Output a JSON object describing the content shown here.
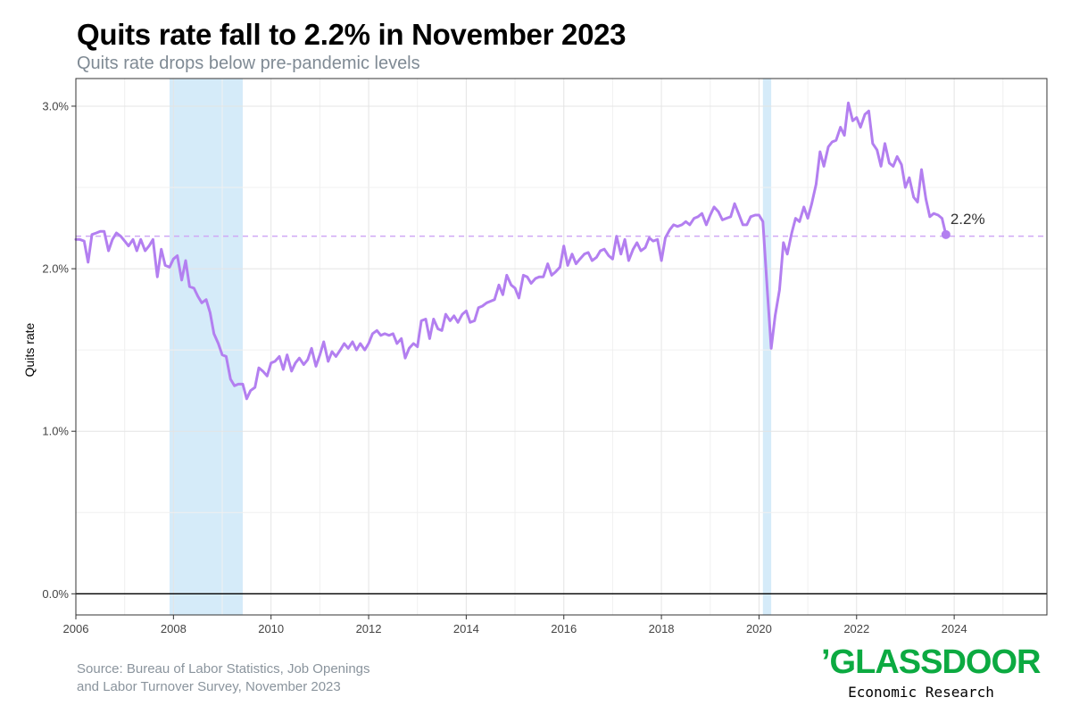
{
  "chart_data": {
    "type": "line",
    "title": "Quits rate fall to 2.2% in November 2023",
    "subtitle": "Quits rate drops below pre-pandemic levels",
    "xlabel": "",
    "ylabel": "Quits rate",
    "xlim": [
      2006,
      2025.9
    ],
    "ylim": [
      -0.13,
      3.17
    ],
    "x_ticks": [
      2006,
      2008,
      2010,
      2012,
      2014,
      2016,
      2018,
      2020,
      2022,
      2024
    ],
    "y_ticks": [
      0.0,
      1.0,
      2.0,
      3.0
    ],
    "y_tick_labels": [
      "0.0%",
      "1.0%",
      "2.0%",
      "3.0%"
    ],
    "grid": true,
    "line_color": "#b37ff0",
    "recession_color": "#d5ebf9",
    "recessions": [
      [
        2007.92,
        2009.42
      ],
      [
        2020.08,
        2020.25
      ]
    ],
    "reference_line": {
      "value": 2.2,
      "color": "#cfa8f5"
    },
    "end_label": "2.2%",
    "end_point": {
      "x": 2023.83,
      "y": 2.21
    },
    "series": [
      {
        "points": [
          [
            2006.0,
            2.18
          ],
          [
            2006.08,
            2.18
          ],
          [
            2006.17,
            2.17
          ],
          [
            2006.25,
            2.04
          ],
          [
            2006.33,
            2.21
          ],
          [
            2006.42,
            2.22
          ],
          [
            2006.5,
            2.23
          ],
          [
            2006.58,
            2.23
          ],
          [
            2006.67,
            2.11
          ],
          [
            2006.75,
            2.18
          ],
          [
            2006.83,
            2.22
          ],
          [
            2006.92,
            2.2
          ],
          [
            2007.0,
            2.17
          ],
          [
            2007.08,
            2.14
          ],
          [
            2007.17,
            2.18
          ],
          [
            2007.25,
            2.11
          ],
          [
            2007.33,
            2.18
          ],
          [
            2007.42,
            2.11
          ],
          [
            2007.5,
            2.14
          ],
          [
            2007.58,
            2.18
          ],
          [
            2007.67,
            1.95
          ],
          [
            2007.75,
            2.12
          ],
          [
            2007.83,
            2.02
          ],
          [
            2007.92,
            2.01
          ],
          [
            2008.0,
            2.06
          ],
          [
            2008.08,
            2.08
          ],
          [
            2008.17,
            1.93
          ],
          [
            2008.25,
            2.05
          ],
          [
            2008.33,
            1.89
          ],
          [
            2008.42,
            1.88
          ],
          [
            2008.5,
            1.83
          ],
          [
            2008.58,
            1.79
          ],
          [
            2008.67,
            1.81
          ],
          [
            2008.75,
            1.73
          ],
          [
            2008.83,
            1.6
          ],
          [
            2008.92,
            1.54
          ],
          [
            2009.0,
            1.47
          ],
          [
            2009.08,
            1.46
          ],
          [
            2009.17,
            1.32
          ],
          [
            2009.25,
            1.28
          ],
          [
            2009.33,
            1.29
          ],
          [
            2009.42,
            1.29
          ],
          [
            2009.5,
            1.2
          ],
          [
            2009.58,
            1.25
          ],
          [
            2009.67,
            1.27
          ],
          [
            2009.75,
            1.39
          ],
          [
            2009.83,
            1.37
          ],
          [
            2009.92,
            1.34
          ],
          [
            2010.0,
            1.42
          ],
          [
            2010.08,
            1.43
          ],
          [
            2010.17,
            1.46
          ],
          [
            2010.25,
            1.38
          ],
          [
            2010.33,
            1.47
          ],
          [
            2010.42,
            1.37
          ],
          [
            2010.5,
            1.42
          ],
          [
            2010.58,
            1.45
          ],
          [
            2010.67,
            1.41
          ],
          [
            2010.75,
            1.44
          ],
          [
            2010.83,
            1.51
          ],
          [
            2010.92,
            1.4
          ],
          [
            2011.0,
            1.47
          ],
          [
            2011.08,
            1.55
          ],
          [
            2011.17,
            1.43
          ],
          [
            2011.25,
            1.49
          ],
          [
            2011.33,
            1.46
          ],
          [
            2011.42,
            1.5
          ],
          [
            2011.5,
            1.54
          ],
          [
            2011.58,
            1.51
          ],
          [
            2011.67,
            1.55
          ],
          [
            2011.75,
            1.5
          ],
          [
            2011.83,
            1.54
          ],
          [
            2011.92,
            1.5
          ],
          [
            2012.0,
            1.54
          ],
          [
            2012.08,
            1.6
          ],
          [
            2012.17,
            1.62
          ],
          [
            2012.25,
            1.59
          ],
          [
            2012.33,
            1.6
          ],
          [
            2012.42,
            1.59
          ],
          [
            2012.5,
            1.6
          ],
          [
            2012.58,
            1.54
          ],
          [
            2012.67,
            1.57
          ],
          [
            2012.75,
            1.45
          ],
          [
            2012.83,
            1.51
          ],
          [
            2012.92,
            1.54
          ],
          [
            2013.0,
            1.52
          ],
          [
            2013.08,
            1.68
          ],
          [
            2013.17,
            1.69
          ],
          [
            2013.25,
            1.57
          ],
          [
            2013.33,
            1.69
          ],
          [
            2013.42,
            1.63
          ],
          [
            2013.5,
            1.62
          ],
          [
            2013.58,
            1.72
          ],
          [
            2013.67,
            1.68
          ],
          [
            2013.75,
            1.71
          ],
          [
            2013.83,
            1.67
          ],
          [
            2013.92,
            1.72
          ],
          [
            2014.0,
            1.74
          ],
          [
            2014.08,
            1.67
          ],
          [
            2014.17,
            1.68
          ],
          [
            2014.25,
            1.76
          ],
          [
            2014.33,
            1.77
          ],
          [
            2014.42,
            1.79
          ],
          [
            2014.5,
            1.8
          ],
          [
            2014.58,
            1.81
          ],
          [
            2014.67,
            1.9
          ],
          [
            2014.75,
            1.84
          ],
          [
            2014.83,
            1.96
          ],
          [
            2014.92,
            1.9
          ],
          [
            2015.0,
            1.88
          ],
          [
            2015.08,
            1.82
          ],
          [
            2015.17,
            1.96
          ],
          [
            2015.25,
            1.95
          ],
          [
            2015.33,
            1.91
          ],
          [
            2015.42,
            1.94
          ],
          [
            2015.5,
            1.95
          ],
          [
            2015.58,
            1.95
          ],
          [
            2015.67,
            2.03
          ],
          [
            2015.75,
            1.96
          ],
          [
            2015.83,
            1.98
          ],
          [
            2015.92,
            2.01
          ],
          [
            2016.0,
            2.14
          ],
          [
            2016.08,
            2.02
          ],
          [
            2016.17,
            2.09
          ],
          [
            2016.25,
            2.03
          ],
          [
            2016.33,
            2.06
          ],
          [
            2016.42,
            2.09
          ],
          [
            2016.5,
            2.1
          ],
          [
            2016.58,
            2.05
          ],
          [
            2016.67,
            2.07
          ],
          [
            2016.75,
            2.11
          ],
          [
            2016.83,
            2.12
          ],
          [
            2016.92,
            2.08
          ],
          [
            2017.0,
            2.06
          ],
          [
            2017.08,
            2.2
          ],
          [
            2017.17,
            2.09
          ],
          [
            2017.25,
            2.18
          ],
          [
            2017.33,
            2.05
          ],
          [
            2017.42,
            2.12
          ],
          [
            2017.5,
            2.16
          ],
          [
            2017.58,
            2.11
          ],
          [
            2017.67,
            2.13
          ],
          [
            2017.75,
            2.19
          ],
          [
            2017.83,
            2.17
          ],
          [
            2017.92,
            2.18
          ],
          [
            2018.0,
            2.05
          ],
          [
            2018.08,
            2.19
          ],
          [
            2018.17,
            2.24
          ],
          [
            2018.25,
            2.27
          ],
          [
            2018.33,
            2.26
          ],
          [
            2018.42,
            2.27
          ],
          [
            2018.5,
            2.29
          ],
          [
            2018.58,
            2.27
          ],
          [
            2018.67,
            2.31
          ],
          [
            2018.75,
            2.32
          ],
          [
            2018.83,
            2.34
          ],
          [
            2018.92,
            2.27
          ],
          [
            2019.0,
            2.33
          ],
          [
            2019.08,
            2.38
          ],
          [
            2019.17,
            2.35
          ],
          [
            2019.25,
            2.3
          ],
          [
            2019.33,
            2.31
          ],
          [
            2019.42,
            2.32
          ],
          [
            2019.5,
            2.4
          ],
          [
            2019.58,
            2.34
          ],
          [
            2019.67,
            2.27
          ],
          [
            2019.75,
            2.27
          ],
          [
            2019.83,
            2.32
          ],
          [
            2019.92,
            2.33
          ],
          [
            2020.0,
            2.33
          ],
          [
            2020.08,
            2.29
          ],
          [
            2020.17,
            1.87
          ],
          [
            2020.25,
            1.51
          ],
          [
            2020.33,
            1.71
          ],
          [
            2020.42,
            1.87
          ],
          [
            2020.5,
            2.16
          ],
          [
            2020.58,
            2.09
          ],
          [
            2020.67,
            2.22
          ],
          [
            2020.75,
            2.31
          ],
          [
            2020.83,
            2.29
          ],
          [
            2020.92,
            2.38
          ],
          [
            2021.0,
            2.31
          ],
          [
            2021.08,
            2.4
          ],
          [
            2021.17,
            2.52
          ],
          [
            2021.25,
            2.72
          ],
          [
            2021.33,
            2.63
          ],
          [
            2021.42,
            2.75
          ],
          [
            2021.5,
            2.78
          ],
          [
            2021.58,
            2.79
          ],
          [
            2021.67,
            2.87
          ],
          [
            2021.75,
            2.82
          ],
          [
            2021.83,
            3.02
          ],
          [
            2021.92,
            2.91
          ],
          [
            2022.0,
            2.93
          ],
          [
            2022.08,
            2.87
          ],
          [
            2022.17,
            2.95
          ],
          [
            2022.25,
            2.97
          ],
          [
            2022.33,
            2.77
          ],
          [
            2022.42,
            2.73
          ],
          [
            2022.5,
            2.63
          ],
          [
            2022.58,
            2.77
          ],
          [
            2022.67,
            2.65
          ],
          [
            2022.75,
            2.63
          ],
          [
            2022.83,
            2.69
          ],
          [
            2022.92,
            2.64
          ],
          [
            2023.0,
            2.5
          ],
          [
            2023.08,
            2.56
          ],
          [
            2023.17,
            2.44
          ],
          [
            2023.25,
            2.41
          ],
          [
            2023.33,
            2.61
          ],
          [
            2023.42,
            2.43
          ],
          [
            2023.5,
            2.32
          ],
          [
            2023.58,
            2.34
          ],
          [
            2023.67,
            2.33
          ],
          [
            2023.75,
            2.31
          ],
          [
            2023.83,
            2.21
          ]
        ]
      }
    ]
  },
  "footer": {
    "source_line1": "Source: Bureau of Labor Statistics, Job Openings",
    "source_line2": "and Labor Turnover Survey, November 2023"
  },
  "logo": {
    "word": "’GLASSDOOR",
    "tagline": "Economic Research",
    "color": "#0caa41"
  }
}
